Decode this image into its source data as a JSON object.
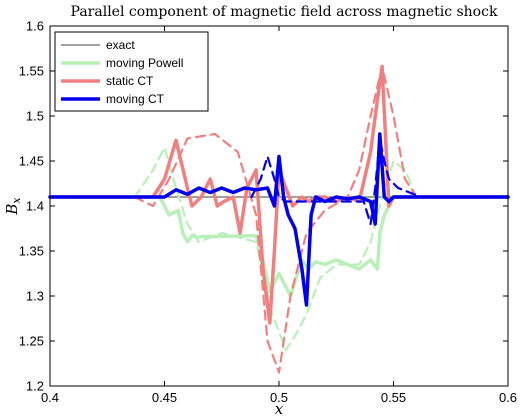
{
  "chart_data": {
    "type": "line",
    "title": "Parallel component of magnetic field across magnetic shock",
    "xlabel": "x",
    "ylabel": "B",
    "ylabel_sub": "x",
    "xlim": [
      0.4,
      0.6
    ],
    "ylim": [
      1.2,
      1.6
    ],
    "xticks": [
      "0.4",
      "0.45",
      "0.5",
      "0.55",
      "0.6"
    ],
    "yticks": [
      "1.2",
      "1.25",
      "1.3",
      "1.35",
      "1.4",
      "1.45",
      "1.5",
      "1.55",
      "1.6"
    ],
    "grid": false,
    "legend_position": "top-left",
    "series": [
      {
        "name": "exact",
        "color": "#000000",
        "style": "solid",
        "width": 0.8,
        "x": [
          0.4,
          0.6
        ],
        "y": [
          1.41,
          1.41
        ]
      },
      {
        "name": "moving Powell",
        "color": "#b8f0b8",
        "style": "solid",
        "width": 3.5,
        "x": [
          0.4,
          0.448,
          0.452,
          0.456,
          0.458,
          0.46,
          0.462,
          0.464,
          0.466,
          0.49,
          0.493,
          0.496,
          0.5,
          0.505,
          0.51,
          0.513,
          0.516,
          0.52,
          0.525,
          0.53,
          0.535,
          0.54,
          0.543,
          0.544,
          0.546,
          0.548,
          0.55,
          0.6
        ],
        "y": [
          1.41,
          1.41,
          1.39,
          1.395,
          1.37,
          1.36,
          1.367,
          1.365,
          1.366,
          1.367,
          1.34,
          1.305,
          1.325,
          1.3,
          1.34,
          1.33,
          1.338,
          1.335,
          1.34,
          1.335,
          1.33,
          1.34,
          1.33,
          1.37,
          1.39,
          1.4,
          1.41,
          1.41
        ]
      },
      {
        "name": "static CT",
        "color": "#f08080",
        "style": "solid",
        "width": 3.5,
        "x": [
          0.4,
          0.445,
          0.45,
          0.455,
          0.46,
          0.462,
          0.466,
          0.47,
          0.473,
          0.476,
          0.48,
          0.483,
          0.486,
          0.49,
          0.493,
          0.496,
          0.498,
          0.5,
          0.503,
          0.506,
          0.51,
          0.513,
          0.516,
          0.52,
          0.525,
          0.53,
          0.535,
          0.54,
          0.542,
          0.545,
          0.548,
          0.55,
          0.6
        ],
        "y": [
          1.41,
          1.41,
          1.43,
          1.473,
          1.42,
          1.4,
          1.41,
          1.43,
          1.4,
          1.405,
          1.41,
          1.37,
          1.42,
          1.44,
          1.33,
          1.27,
          1.35,
          1.44,
          1.42,
          1.4,
          1.41,
          1.405,
          1.41,
          1.41,
          1.405,
          1.41,
          1.405,
          1.46,
          1.5,
          1.555,
          1.4,
          1.41,
          1.41
        ]
      },
      {
        "name": "static CT (dashed)",
        "color": "#f08080",
        "style": "dashed",
        "width": 2.2,
        "x": [
          0.437,
          0.445,
          0.452,
          0.46,
          0.472,
          0.482,
          0.49,
          0.495,
          0.5,
          0.505,
          0.512,
          0.52,
          0.53,
          0.535,
          0.54,
          0.545,
          0.55,
          0.555,
          0.56
        ],
        "y": [
          1.41,
          1.4,
          1.43,
          1.475,
          1.48,
          1.46,
          1.39,
          1.25,
          1.215,
          1.3,
          1.37,
          1.395,
          1.41,
          1.44,
          1.5,
          1.555,
          1.5,
          1.43,
          1.41
        ]
      },
      {
        "name": "moving Powell (dashed)",
        "color": "#b8f0b8",
        "style": "dashed",
        "width": 2.2,
        "x": [
          0.437,
          0.445,
          0.45,
          0.455,
          0.46,
          0.465,
          0.475,
          0.49,
          0.497,
          0.503,
          0.508,
          0.512,
          0.518,
          0.525,
          0.535,
          0.54,
          0.545,
          0.55,
          0.555,
          0.56
        ],
        "y": [
          1.41,
          1.44,
          1.465,
          1.42,
          1.38,
          1.36,
          1.37,
          1.36,
          1.28,
          1.24,
          1.26,
          1.28,
          1.32,
          1.335,
          1.335,
          1.36,
          1.41,
          1.45,
          1.44,
          1.41
        ]
      },
      {
        "name": "moving CT",
        "color": "#0000ee",
        "style": "solid",
        "width": 3.5,
        "x": [
          0.4,
          0.45,
          0.455,
          0.46,
          0.465,
          0.47,
          0.475,
          0.48,
          0.485,
          0.49,
          0.495,
          0.498,
          0.5,
          0.502,
          0.504,
          0.507,
          0.51,
          0.512,
          0.514,
          0.516,
          0.52,
          0.525,
          0.53,
          0.535,
          0.54,
          0.542,
          0.544,
          0.546,
          0.548,
          0.55,
          0.6
        ],
        "y": [
          1.41,
          1.41,
          1.418,
          1.413,
          1.42,
          1.415,
          1.42,
          1.415,
          1.42,
          1.418,
          1.42,
          1.4,
          1.455,
          1.41,
          1.39,
          1.375,
          1.33,
          1.29,
          1.39,
          1.41,
          1.405,
          1.41,
          1.408,
          1.41,
          1.405,
          1.38,
          1.48,
          1.41,
          1.405,
          1.41,
          1.41
        ]
      },
      {
        "name": "moving CT (dashed)",
        "color": "#0000ee",
        "style": "dashed",
        "width": 2.2,
        "x": [
          0.488,
          0.492,
          0.495,
          0.498,
          0.5,
          0.503,
          0.537,
          0.54,
          0.542,
          0.544,
          0.546,
          0.548,
          0.552,
          0.557,
          0.562
        ],
        "y": [
          1.41,
          1.43,
          1.455,
          1.43,
          1.41,
          1.405,
          1.405,
          1.38,
          1.42,
          1.475,
          1.45,
          1.43,
          1.42,
          1.415,
          1.41
        ]
      }
    ],
    "legend": [
      {
        "label": "exact",
        "color": "#000000",
        "width": 0.8
      },
      {
        "label": "moving Powell",
        "color": "#b8f0b8",
        "width": 3.5
      },
      {
        "label": "static CT",
        "color": "#f08080",
        "width": 3.5
      },
      {
        "label": "moving CT",
        "color": "#0000ee",
        "width": 3.5
      }
    ]
  }
}
